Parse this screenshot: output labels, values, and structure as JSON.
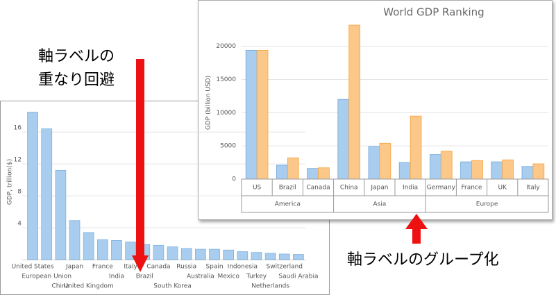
{
  "chart_data": [
    {
      "type": "bar",
      "ylabel": "GDP, trillion($)",
      "categories": [
        "United States",
        "European Union",
        "China",
        "Japan",
        "United Kingdom",
        "France",
        "India",
        "Italy",
        "Brazil",
        "Canada",
        "South Korea",
        "Russia",
        "Australia",
        "Spain",
        "Mexico",
        "Indonesia",
        "Turkey",
        "Netherlands",
        "Switzerland",
        "Saudi Arabia"
      ],
      "values": [
        18.5,
        16.4,
        11.2,
        4.9,
        3.4,
        2.5,
        2.4,
        2.2,
        1.9,
        1.8,
        1.6,
        1.4,
        1.3,
        1.3,
        1.2,
        1.0,
        0.9,
        0.8,
        0.7,
        0.65
      ],
      "color": "#a9cdee",
      "ylim": [
        0,
        19.5
      ],
      "yticks": [
        4,
        8,
        12,
        16
      ],
      "grid": true
    },
    {
      "type": "grouped-bar",
      "title": "World GDP Ranking",
      "ylabel": "GDP (billion USD)",
      "groups": [
        {
          "label": "America",
          "categories": [
            "US",
            "Brazil",
            "Canada"
          ]
        },
        {
          "label": "Asia",
          "categories": [
            "China",
            "Japan",
            "India"
          ]
        },
        {
          "label": "Europe",
          "categories": [
            "Germany",
            "France",
            "UK",
            "Italy"
          ]
        }
      ],
      "series": [
        {
          "color": "#a9cdee",
          "values": [
            19400,
            2100,
            1600,
            12000,
            4900,
            2500,
            3700,
            2600,
            2600,
            1900
          ]
        },
        {
          "color": "#fcc88a",
          "values": [
            19400,
            3200,
            1700,
            23200,
            5400,
            9500,
            4200,
            2800,
            2900,
            2300
          ]
        }
      ],
      "ylim": [
        0,
        23000
      ],
      "yticks": [
        0,
        5000,
        10000,
        15000,
        20000
      ],
      "grid": true
    }
  ],
  "annotations": [
    "軸ラベルの",
    "重なり回避",
    "軸ラベルのグループ化"
  ]
}
